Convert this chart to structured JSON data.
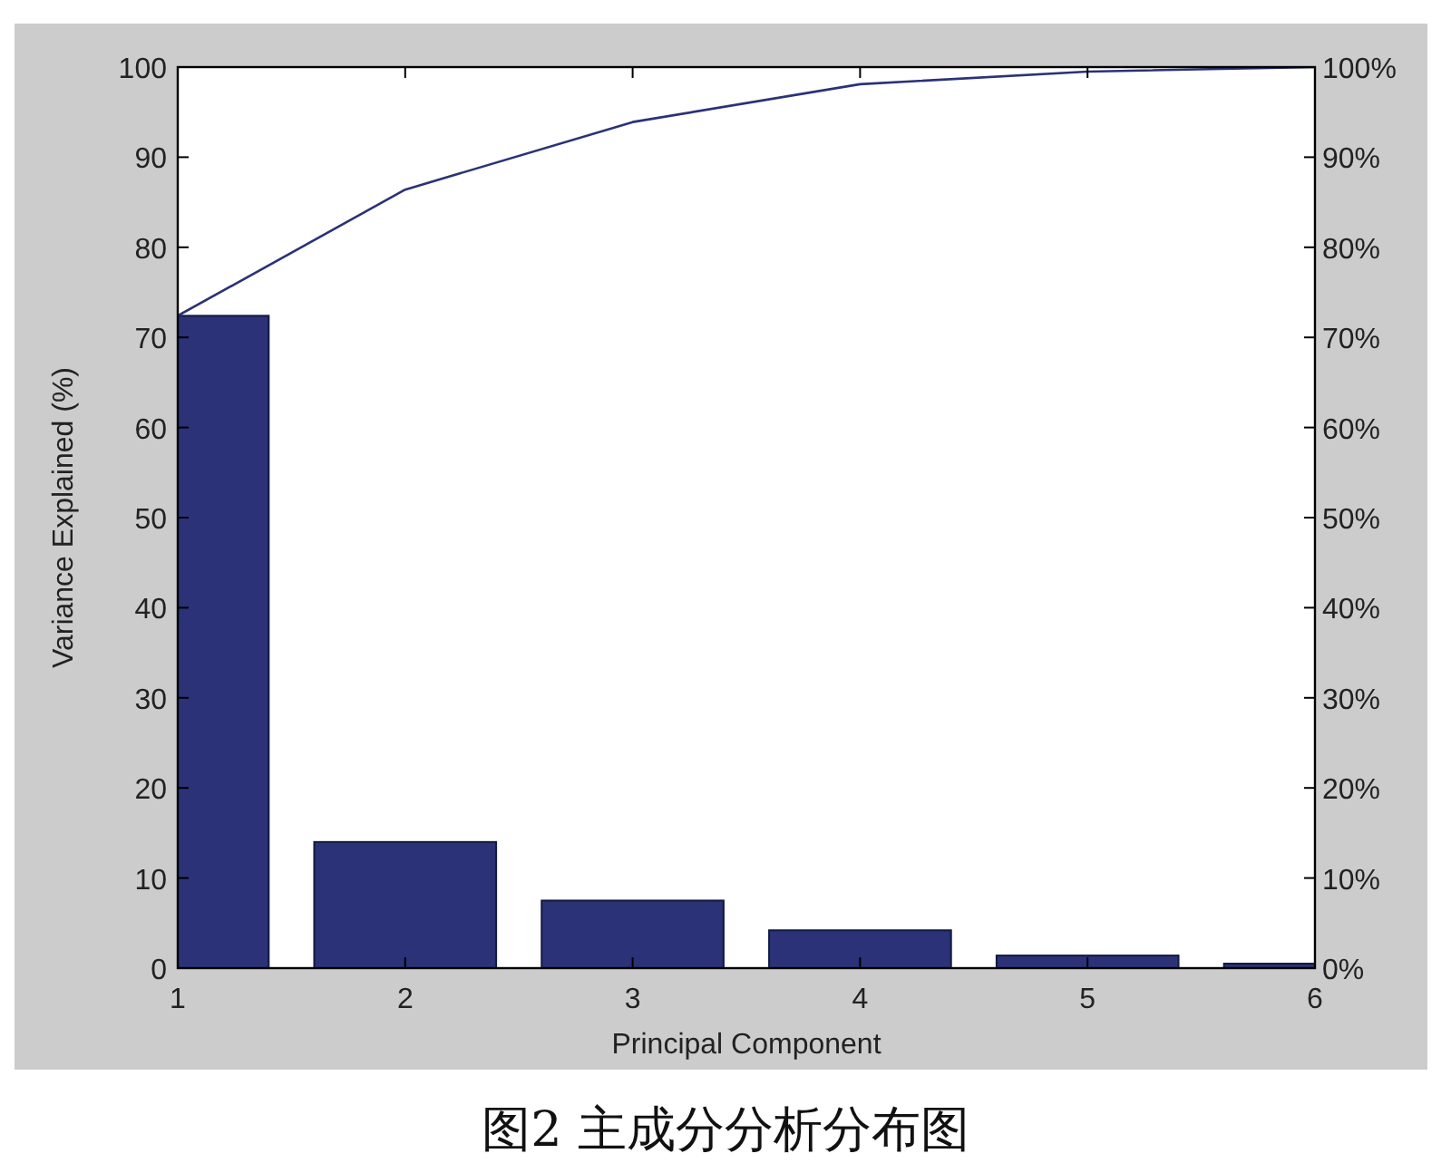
{
  "chart_data": {
    "type": "bar",
    "xlabel": "Principal Component",
    "ylabel": "Variance Explained (%)",
    "x": [
      1,
      2,
      3,
      4,
      5,
      6
    ],
    "series": [
      {
        "color": "#2b3277",
        "values": [
          72.4,
          14,
          7.5,
          4.2,
          1.4,
          0.5
        ]
      },
      {
        "type": "line",
        "axis": "y2",
        "color": "#2b3277",
        "values": [
          72.4,
          86.4,
          93.9,
          98.1,
          99.5,
          100
        ]
      }
    ],
    "xlim": [
      1,
      6
    ],
    "xticks": [
      1,
      2,
      3,
      4,
      5,
      6
    ],
    "ylim": [
      0,
      100
    ],
    "yticks": [
      0,
      10,
      20,
      30,
      40,
      50,
      60,
      70,
      80,
      90,
      100
    ],
    "y2lim": [
      0,
      100
    ],
    "y2ticks": [
      {
        "value": 0,
        "label": "0%"
      },
      {
        "value": 10,
        "label": "10%"
      },
      {
        "value": 20,
        "label": "20%"
      },
      {
        "value": 30,
        "label": "30%"
      },
      {
        "value": 40,
        "label": "40%"
      },
      {
        "value": 50,
        "label": "50%"
      },
      {
        "value": 60,
        "label": "60%"
      },
      {
        "value": 70,
        "label": "70%"
      },
      {
        "value": 80,
        "label": "80%"
      },
      {
        "value": 90,
        "label": "90%"
      },
      {
        "value": 100,
        "label": "100%"
      }
    ],
    "grid": false,
    "annotations": [
      "图2   主成分分析分布图"
    ]
  }
}
